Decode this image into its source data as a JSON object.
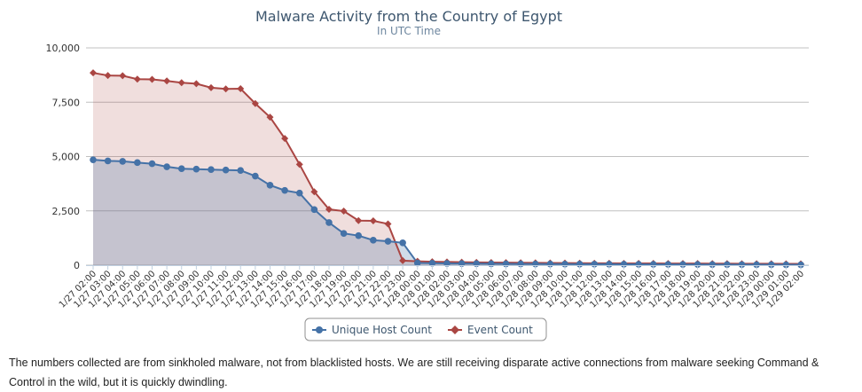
{
  "chart_data": {
    "type": "area",
    "title": "Malware Activity from the Country of Egypt",
    "subtitle": "In UTC Time",
    "ylim": [
      0,
      10000
    ],
    "yticks": [
      "0",
      "2,500",
      "5,000",
      "7,500",
      "10,000"
    ],
    "ytick_values": [
      0,
      2500,
      5000,
      7500,
      10000
    ],
    "grid": true,
    "legend_position": "bottom-center",
    "categories": [
      "1/27 02:00",
      "1/27 03:00",
      "1/27 04:00",
      "1/27 05:00",
      "1/27 06:00",
      "1/27 07:00",
      "1/27 08:00",
      "1/27 09:00",
      "1/27 10:00",
      "1/27 11:00",
      "1/27 12:00",
      "1/27 13:00",
      "1/27 14:00",
      "1/27 15:00",
      "1/27 16:00",
      "1/27 17:00",
      "1/27 18:00",
      "1/27 19:00",
      "1/27 20:00",
      "1/27 21:00",
      "1/27 22:00",
      "1/27 23:00",
      "1/28 00:00",
      "1/28 01:00",
      "1/28 02:00",
      "1/28 03:00",
      "1/28 04:00",
      "1/28 05:00",
      "1/28 06:00",
      "1/28 07:00",
      "1/28 08:00",
      "1/28 09:00",
      "1/28 10:00",
      "1/28 11:00",
      "1/28 12:00",
      "1/28 13:00",
      "1/28 14:00",
      "1/28 15:00",
      "1/28 16:00",
      "1/28 17:00",
      "1/28 18:00",
      "1/28 19:00",
      "1/28 20:00",
      "1/28 21:00",
      "1/28 22:00",
      "1/28 23:00",
      "1/29 00:00",
      "1/29 01:00",
      "1/29 02:00"
    ],
    "series": [
      {
        "name": "Unique Host Count",
        "color": "#4572a7",
        "marker": "circle",
        "values": [
          4850,
          4800,
          4780,
          4720,
          4670,
          4530,
          4440,
          4420,
          4400,
          4380,
          4360,
          4100,
          3680,
          3440,
          3320,
          2560,
          1960,
          1460,
          1360,
          1150,
          1100,
          1030,
          100,
          90,
          80,
          75,
          70,
          65,
          60,
          58,
          55,
          52,
          50,
          48,
          46,
          44,
          42,
          40,
          38,
          36,
          34,
          32,
          30,
          28,
          26,
          24,
          22,
          20,
          18
        ]
      },
      {
        "name": "Event Count",
        "color": "#aa4643",
        "marker": "diamond",
        "values": [
          8850,
          8730,
          8720,
          8560,
          8550,
          8480,
          8400,
          8350,
          8170,
          8110,
          8120,
          7440,
          6810,
          5830,
          4640,
          3380,
          2570,
          2490,
          2050,
          2040,
          1900,
          210,
          180,
          160,
          150,
          140,
          130,
          120,
          115,
          110,
          105,
          100,
          95,
          90,
          88,
          86,
          84,
          82,
          80,
          78,
          76,
          74,
          72,
          70,
          68,
          66,
          64,
          62,
          60
        ]
      }
    ]
  },
  "caption": "The numbers collected are from sinkholed malware, not from blacklisted hosts. We are still receiving disparate active connections from malware seeking Command & Control in the wild, but it is quickly dwindling."
}
